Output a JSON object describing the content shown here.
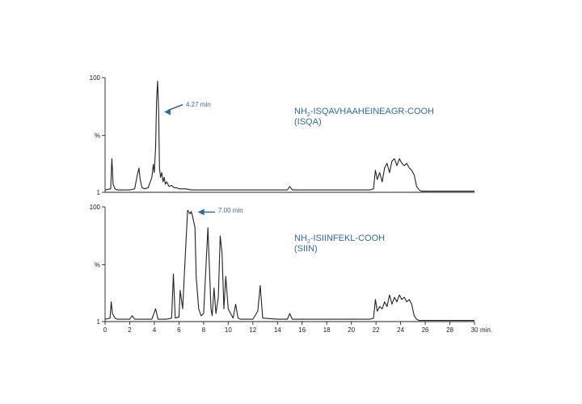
{
  "chart_data": [
    {
      "type": "line",
      "name_label": "NH2-ISQAVHAAHEINEAGR-COOH",
      "label_parts": [
        "NH",
        "2",
        "-ISQAVHAAHEINEAGR-COOH"
      ],
      "sublabel": "(ISQA)",
      "peak_annotation": "4.27 min",
      "annotation_color": "#2e6ba4",
      "xlim": [
        0,
        30
      ],
      "ylim": [
        1,
        100
      ],
      "y_ticks": [
        {
          "value": 100,
          "label": "100"
        },
        {
          "value": 50,
          "label": "%"
        },
        {
          "value": 1,
          "label": "1"
        }
      ],
      "x_ticks_shown": false,
      "peak_x": 4.27,
      "x": [
        0,
        0.45,
        0.55,
        0.65,
        0.8,
        1.0,
        1.5,
        2.0,
        2.4,
        2.6,
        2.75,
        2.85,
        3.0,
        3.2,
        3.5,
        3.8,
        3.92,
        4.0,
        4.1,
        4.18,
        4.27,
        4.35,
        4.42,
        4.5,
        4.6,
        4.7,
        4.8,
        4.9,
        5.0,
        5.2,
        5.4,
        5.6,
        5.8,
        6.0,
        6.5,
        7.0,
        8.0,
        9.0,
        10.0,
        12.0,
        14.0,
        14.8,
        15.0,
        15.2,
        16.0,
        18.0,
        20.0,
        21.0,
        21.5,
        21.8,
        21.95,
        22.1,
        22.3,
        22.5,
        22.7,
        22.9,
        23.1,
        23.3,
        23.5,
        23.7,
        23.9,
        24.1,
        24.3,
        24.5,
        24.7,
        24.9,
        25.1,
        25.3,
        25.5,
        25.7,
        26.0,
        27.0,
        28.0,
        29.0,
        30.0
      ],
      "y": [
        3,
        4,
        30,
        8,
        4,
        3,
        3,
        3,
        4,
        15,
        22,
        12,
        5,
        4,
        5,
        14,
        25,
        18,
        40,
        80,
        97,
        70,
        22,
        14,
        18,
        10,
        14,
        8,
        10,
        6,
        7,
        5,
        5,
        4,
        4,
        3,
        3,
        3,
        3,
        3,
        3,
        3,
        6,
        3,
        3,
        3,
        3,
        3,
        3,
        4,
        20,
        12,
        18,
        10,
        22,
        26,
        18,
        28,
        30,
        24,
        30,
        26,
        24,
        26,
        22,
        20,
        16,
        6,
        3,
        2,
        2,
        2,
        2,
        2,
        2
      ]
    },
    {
      "type": "line",
      "name_label": "NH2-ISIINFEKL-COOH",
      "label_parts": [
        "NH",
        "2",
        "-ISIINFEKL-COOH"
      ],
      "sublabel": "(SIIN)",
      "peak_annotation": "7.00 min",
      "annotation_color": "#2e6ba4",
      "xlim": [
        0,
        30
      ],
      "ylim": [
        1,
        100
      ],
      "y_ticks": [
        {
          "value": 100,
          "label": "100"
        },
        {
          "value": 50,
          "label": "%"
        },
        {
          "value": 1,
          "label": "1"
        }
      ],
      "x_ticks": [
        0,
        2,
        4,
        6,
        8,
        10,
        12,
        14,
        16,
        18,
        20,
        22,
        24,
        26,
        28,
        30
      ],
      "x_unit": "min.",
      "peak_x": 7.0,
      "x": [
        0,
        0.4,
        0.5,
        0.6,
        0.8,
        1.0,
        2.0,
        2.2,
        2.4,
        3.0,
        3.8,
        4.1,
        4.3,
        5.0,
        5.4,
        5.55,
        5.7,
        6.0,
        6.1,
        6.3,
        6.5,
        6.7,
        6.9,
        7.0,
        7.1,
        7.3,
        7.4,
        7.6,
        7.8,
        8.0,
        8.2,
        8.35,
        8.5,
        8.6,
        8.7,
        8.85,
        9.0,
        9.2,
        9.35,
        9.5,
        9.65,
        9.8,
        10.0,
        10.4,
        10.6,
        10.8,
        11.0,
        12.0,
        12.4,
        12.6,
        12.8,
        14.0,
        14.8,
        15.0,
        15.2,
        16.0,
        18.0,
        20.0,
        21.0,
        21.5,
        21.8,
        21.95,
        22.1,
        22.3,
        22.5,
        22.7,
        22.9,
        23.1,
        23.3,
        23.5,
        23.7,
        23.9,
        24.1,
        24.3,
        24.5,
        24.7,
        24.9,
        25.1,
        25.3,
        25.5,
        25.8,
        27.0,
        28.0,
        30.0
      ],
      "y": [
        3,
        4,
        18,
        8,
        4,
        3,
        3,
        6,
        3,
        3,
        3,
        12,
        3,
        3,
        4,
        42,
        4,
        5,
        28,
        12,
        55,
        97,
        94,
        96,
        92,
        82,
        40,
        12,
        6,
        8,
        50,
        82,
        40,
        12,
        6,
        30,
        8,
        22,
        75,
        60,
        12,
        40,
        12,
        4,
        16,
        4,
        3,
        3,
        10,
        32,
        4,
        3,
        3,
        8,
        3,
        3,
        3,
        3,
        3,
        3,
        4,
        20,
        10,
        14,
        12,
        18,
        14,
        24,
        16,
        22,
        18,
        24,
        20,
        22,
        18,
        20,
        16,
        6,
        3,
        2,
        2,
        2,
        2,
        2
      ]
    }
  ]
}
